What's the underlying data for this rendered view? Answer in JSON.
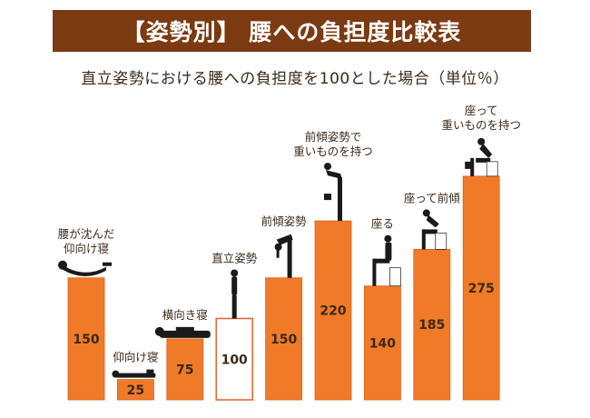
{
  "header": {
    "title": "【姿勢別】 腰への負担度比較表",
    "subtitle": "直立姿勢における腰への負担度を100とした場合（単位％）"
  },
  "colors": {
    "banner": "#7b3a12",
    "bar": "#f07a28",
    "bar_edge": "#d9601a",
    "highlight_fill": "#ffffff",
    "highlight_border": "#e0602a",
    "figure": "#1a1a1a",
    "label": "#3a2a1a"
  },
  "chart_data": {
    "type": "bar",
    "unit": "%",
    "categories": [
      [
        "腰が沈んだ",
        "仰向け寝"
      ],
      [
        "仰向け寝"
      ],
      [
        "横向き寝"
      ],
      [
        "直立姿勢"
      ],
      [
        "前傾姿勢"
      ],
      [
        "前傾姿勢で",
        "重いものを持つ"
      ],
      [
        "座る"
      ],
      [
        "座って前傾"
      ],
      [
        "座って",
        "重いものを持つ"
      ]
    ],
    "values": [
      150,
      25,
      75,
      100,
      150,
      220,
      140,
      185,
      275
    ],
    "value_labels": [
      "150",
      "25",
      "75",
      "100",
      "150",
      "220",
      "140",
      "185",
      "275"
    ],
    "highlight_index": 3,
    "ylim": [
      0,
      300
    ],
    "grid": false,
    "icons": [
      "sagging-supine-figure-icon",
      "supine-figure-icon",
      "side-lying-figure-icon",
      "standing-figure-icon",
      "forward-bend-figure-icon",
      "forward-bend-lifting-figure-icon",
      "sitting-figure-icon",
      "sitting-forward-lean-figure-icon",
      "sitting-lifting-figure-icon"
    ]
  }
}
